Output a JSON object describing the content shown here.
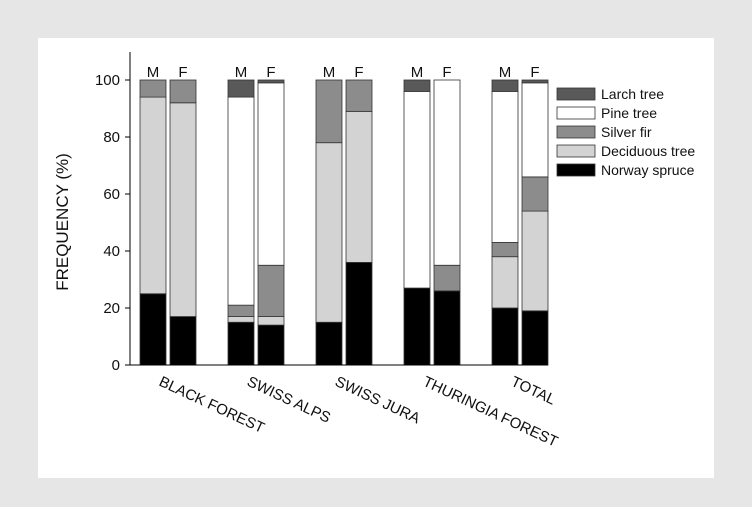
{
  "chart_data": {
    "type": "bar",
    "stacked": true,
    "ylabel": "FREQUENCY (%)",
    "xlabel": "",
    "ylim": [
      0,
      100
    ],
    "yticks": [
      0,
      20,
      40,
      60,
      80,
      100
    ],
    "grid": false,
    "legend_position": "right",
    "groups": [
      "BLACK FOREST",
      "SWISS ALPS",
      "SWISS JURA",
      "THURINGIA FOREST",
      "TOTAL"
    ],
    "bar_labels": [
      "M",
      "F"
    ],
    "series": [
      {
        "name": "Norway spruce",
        "color": "#000000"
      },
      {
        "name": "Deciduous tree",
        "color": "#d3d3d3"
      },
      {
        "name": "Silver fir",
        "color": "#8c8c8c"
      },
      {
        "name": "Pine tree",
        "color": "#ffffff"
      },
      {
        "name": "Larch tree",
        "color": "#595959"
      }
    ],
    "legend_order": [
      "Larch tree",
      "Pine tree",
      "Silver fir",
      "Deciduous tree",
      "Norway spruce"
    ],
    "bars": [
      {
        "group": "BLACK FOREST",
        "label": "M",
        "values": [
          25,
          69,
          6,
          0,
          0
        ]
      },
      {
        "group": "BLACK FOREST",
        "label": "F",
        "values": [
          17,
          75,
          8,
          0,
          0
        ]
      },
      {
        "group": "SWISS ALPS",
        "label": "M",
        "values": [
          15,
          2,
          4,
          73,
          6
        ]
      },
      {
        "group": "SWISS ALPS",
        "label": "F",
        "values": [
          14,
          3,
          18,
          64,
          1
        ]
      },
      {
        "group": "SWISS JURA",
        "label": "M",
        "values": [
          15,
          63,
          22,
          0,
          0
        ]
      },
      {
        "group": "SWISS JURA",
        "label": "F",
        "values": [
          36,
          53,
          11,
          0,
          0
        ]
      },
      {
        "group": "THURINGIA FOREST",
        "label": "M",
        "values": [
          27,
          0,
          0,
          69,
          4
        ]
      },
      {
        "group": "THURINGIA FOREST",
        "label": "F",
        "values": [
          26,
          0,
          9,
          65,
          0
        ]
      },
      {
        "group": "TOTAL",
        "label": "M",
        "values": [
          20,
          18,
          5,
          53,
          4
        ]
      },
      {
        "group": "TOTAL",
        "label": "F",
        "values": [
          19,
          35,
          12,
          33,
          1
        ]
      }
    ]
  }
}
